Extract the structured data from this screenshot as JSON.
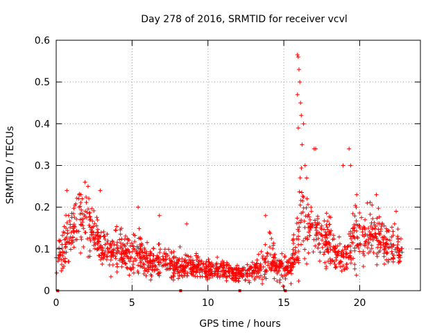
{
  "chart_data": {
    "type": "scatter",
    "title": "Day 278 of 2016, SRMTID for receiver vcvl",
    "xlabel": "GPS time / hours",
    "ylabel": "SRMTID / TECUs",
    "xlim": [
      0,
      24
    ],
    "ylim": [
      0,
      0.6
    ],
    "xticks": [
      0,
      5,
      10,
      15,
      20
    ],
    "xtick_labels": [
      "0",
      "5",
      "10",
      "15",
      "20"
    ],
    "yticks": [
      0,
      0.1,
      0.2,
      0.3,
      0.4,
      0.5,
      0.6
    ],
    "ytick_labels": [
      "0",
      "0.1",
      "0.2",
      "0.3",
      "0.4",
      "0.5",
      "0.6"
    ],
    "grid": true,
    "marker": "+",
    "series_color": "#ff0000",
    "gap_markers_x": [
      0.1,
      8.2,
      12.1,
      15.1
    ],
    "envelope": {
      "x": [
        0,
        0.5,
        1,
        1.5,
        2,
        2.5,
        3,
        3.5,
        4,
        4.5,
        5,
        5.5,
        6,
        6.5,
        7,
        7.5,
        8,
        8.5,
        9,
        9.5,
        10,
        10.5,
        11,
        11.5,
        12,
        12.5,
        13,
        13.5,
        14,
        14.5,
        15,
        15.5,
        15.8,
        16,
        16.3,
        16.6,
        17,
        17.5,
        18,
        18.5,
        19,
        19.5,
        20,
        20.5,
        21,
        21.5,
        22,
        22.5,
        22.8
      ],
      "center": [
        0.08,
        0.1,
        0.15,
        0.17,
        0.17,
        0.13,
        0.1,
        0.1,
        0.1,
        0.09,
        0.09,
        0.09,
        0.07,
        0.07,
        0.07,
        0.06,
        0.06,
        0.06,
        0.06,
        0.06,
        0.05,
        0.05,
        0.05,
        0.045,
        0.04,
        0.04,
        0.05,
        0.06,
        0.08,
        0.06,
        0.05,
        0.06,
        0.1,
        0.17,
        0.18,
        0.16,
        0.14,
        0.13,
        0.12,
        0.08,
        0.08,
        0.12,
        0.14,
        0.13,
        0.13,
        0.12,
        0.11,
        0.1,
        0.1
      ],
      "spread": [
        0.03,
        0.05,
        0.06,
        0.06,
        0.06,
        0.05,
        0.04,
        0.04,
        0.04,
        0.035,
        0.04,
        0.04,
        0.03,
        0.03,
        0.035,
        0.025,
        0.025,
        0.025,
        0.02,
        0.02,
        0.02,
        0.02,
        0.02,
        0.018,
        0.015,
        0.015,
        0.02,
        0.025,
        0.05,
        0.03,
        0.025,
        0.03,
        0.06,
        0.12,
        0.1,
        0.07,
        0.05,
        0.05,
        0.05,
        0.03,
        0.03,
        0.05,
        0.06,
        0.05,
        0.05,
        0.05,
        0.04,
        0.035,
        0.035
      ]
    },
    "highlights": [
      {
        "x": 0.7,
        "y": 0.24
      },
      {
        "x": 1.9,
        "y": 0.26
      },
      {
        "x": 2.1,
        "y": 0.25
      },
      {
        "x": 2.9,
        "y": 0.24
      },
      {
        "x": 5.4,
        "y": 0.2
      },
      {
        "x": 6.8,
        "y": 0.18
      },
      {
        "x": 8.6,
        "y": 0.16
      },
      {
        "x": 13.8,
        "y": 0.18
      },
      {
        "x": 15.9,
        "y": 0.565
      },
      {
        "x": 15.95,
        "y": 0.56
      },
      {
        "x": 16.0,
        "y": 0.53
      },
      {
        "x": 16.05,
        "y": 0.5
      },
      {
        "x": 15.9,
        "y": 0.47
      },
      {
        "x": 16.1,
        "y": 0.45
      },
      {
        "x": 16.15,
        "y": 0.42
      },
      {
        "x": 15.95,
        "y": 0.39
      },
      {
        "x": 16.3,
        "y": 0.4
      },
      {
        "x": 16.2,
        "y": 0.35
      },
      {
        "x": 16.4,
        "y": 0.3
      },
      {
        "x": 16.5,
        "y": 0.27
      },
      {
        "x": 17.0,
        "y": 0.34
      },
      {
        "x": 17.1,
        "y": 0.34
      },
      {
        "x": 18.9,
        "y": 0.3
      },
      {
        "x": 19.3,
        "y": 0.34
      },
      {
        "x": 19.4,
        "y": 0.3
      },
      {
        "x": 19.8,
        "y": 0.23
      },
      {
        "x": 20.5,
        "y": 0.21
      },
      {
        "x": 21.1,
        "y": 0.23
      },
      {
        "x": 22.4,
        "y": 0.19
      },
      {
        "x": 22.3,
        "y": 0.16
      }
    ],
    "point_count": 1500
  }
}
